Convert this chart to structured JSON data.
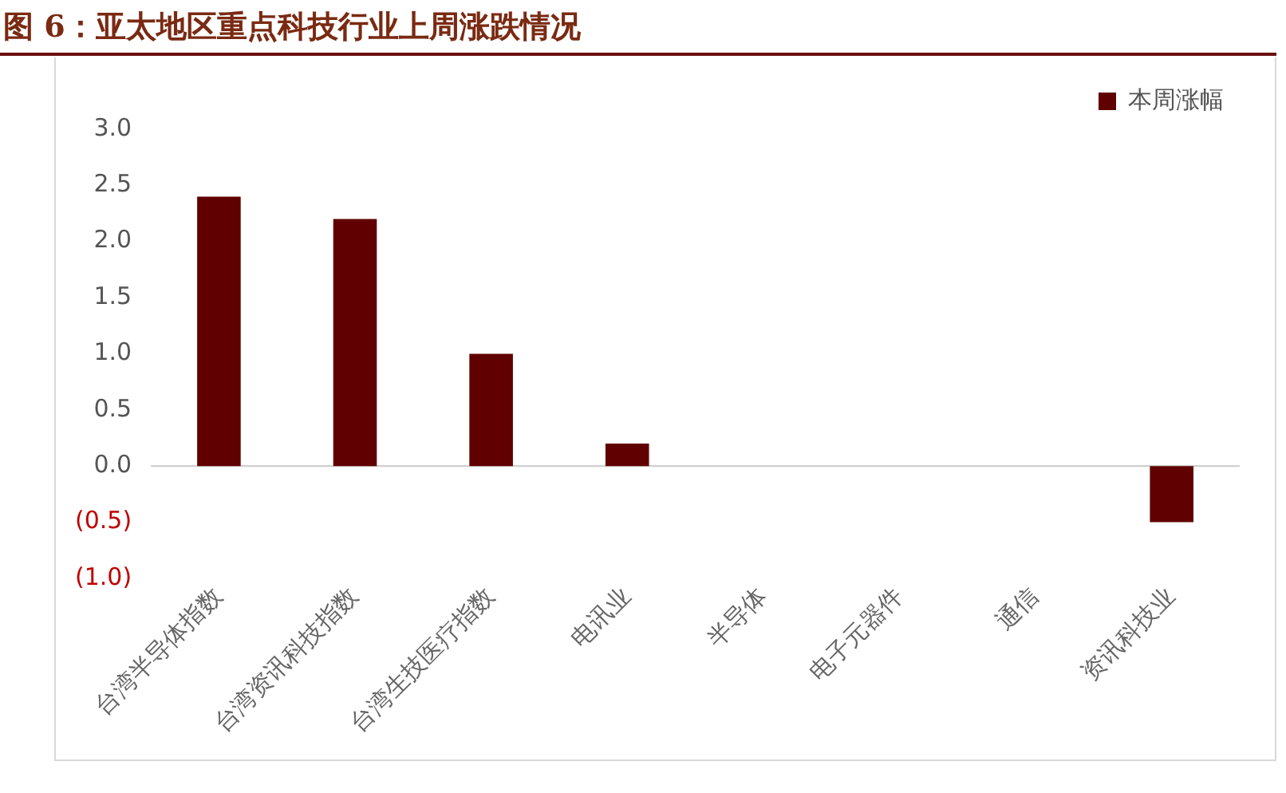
{
  "chart_data": {
    "type": "bar",
    "title": "图 6：亚太地区重点科技行业上周涨跌情况",
    "categories": [
      "台湾半导体指数",
      "台湾资讯科技指数",
      "台湾生技医疗指数",
      "电讯业",
      "半导体",
      "电子元器件",
      "通信",
      "资讯科技业"
    ],
    "series": [
      {
        "name": "本周涨幅",
        "color": "#600000",
        "values": [
          2.4,
          2.2,
          1.0,
          0.2,
          0,
          0,
          0,
          -0.5
        ]
      }
    ],
    "ylim": [
      -1,
      3
    ],
    "yticks": [
      {
        "value": -1,
        "label": "(1.0)"
      },
      {
        "value": -0.5,
        "label": "(0.5)"
      },
      {
        "value": 0,
        "label": "0.0"
      },
      {
        "value": 0.5,
        "label": "0.5"
      },
      {
        "value": 1,
        "label": "1.0"
      },
      {
        "value": 1.5,
        "label": "1.5"
      },
      {
        "value": 2,
        "label": "2.0"
      },
      {
        "value": 2.5,
        "label": "2.5"
      },
      {
        "value": 3,
        "label": "3.0"
      }
    ],
    "ref_lines": [
      {
        "axis": "y",
        "value": 0,
        "color": "#d0d0d0"
      }
    ],
    "grid": false,
    "legend": "top right"
  }
}
